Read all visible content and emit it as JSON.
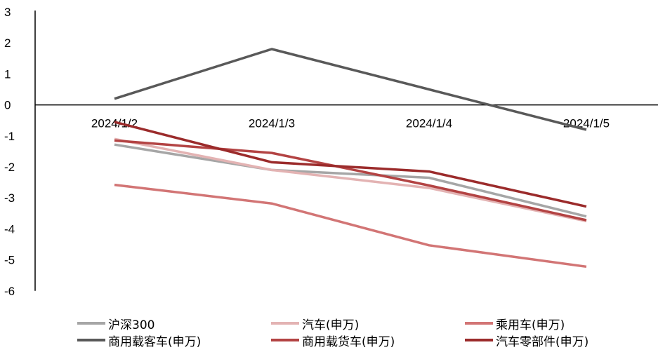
{
  "chart_data": {
    "type": "line",
    "x": [
      "2024/1/2",
      "2024/1/3",
      "2024/1/4",
      "2024/1/5"
    ],
    "ylim": [
      -6,
      3
    ],
    "yticks": [
      3,
      2,
      1,
      0,
      -1,
      -2,
      -3,
      -4,
      -5,
      -6
    ],
    "grid": false,
    "legend_position": "bottom",
    "series": [
      {
        "name": "沪深300",
        "color": "#a6a6a6",
        "values": [
          -1.28,
          -2.1,
          -2.35,
          -3.6
        ]
      },
      {
        "name": "汽车(申万)",
        "color": "#e3b3b3",
        "values": [
          -1.1,
          -2.1,
          -2.68,
          -3.75
        ]
      },
      {
        "name": "乘用车(申万)",
        "color": "#d27575",
        "values": [
          -2.58,
          -3.18,
          -4.53,
          -5.22
        ]
      },
      {
        "name": "商用载客车(申万)",
        "color": "#595959",
        "values": [
          0.2,
          1.8,
          0.5,
          -0.8
        ]
      },
      {
        "name": "商用载货车(申万)",
        "color": "#b34343",
        "values": [
          -1.15,
          -1.55,
          -2.6,
          -3.72
        ]
      },
      {
        "name": "汽车零部件(申万)",
        "color": "#9b2b2b",
        "values": [
          -0.55,
          -1.85,
          -2.15,
          -3.28
        ]
      }
    ]
  }
}
